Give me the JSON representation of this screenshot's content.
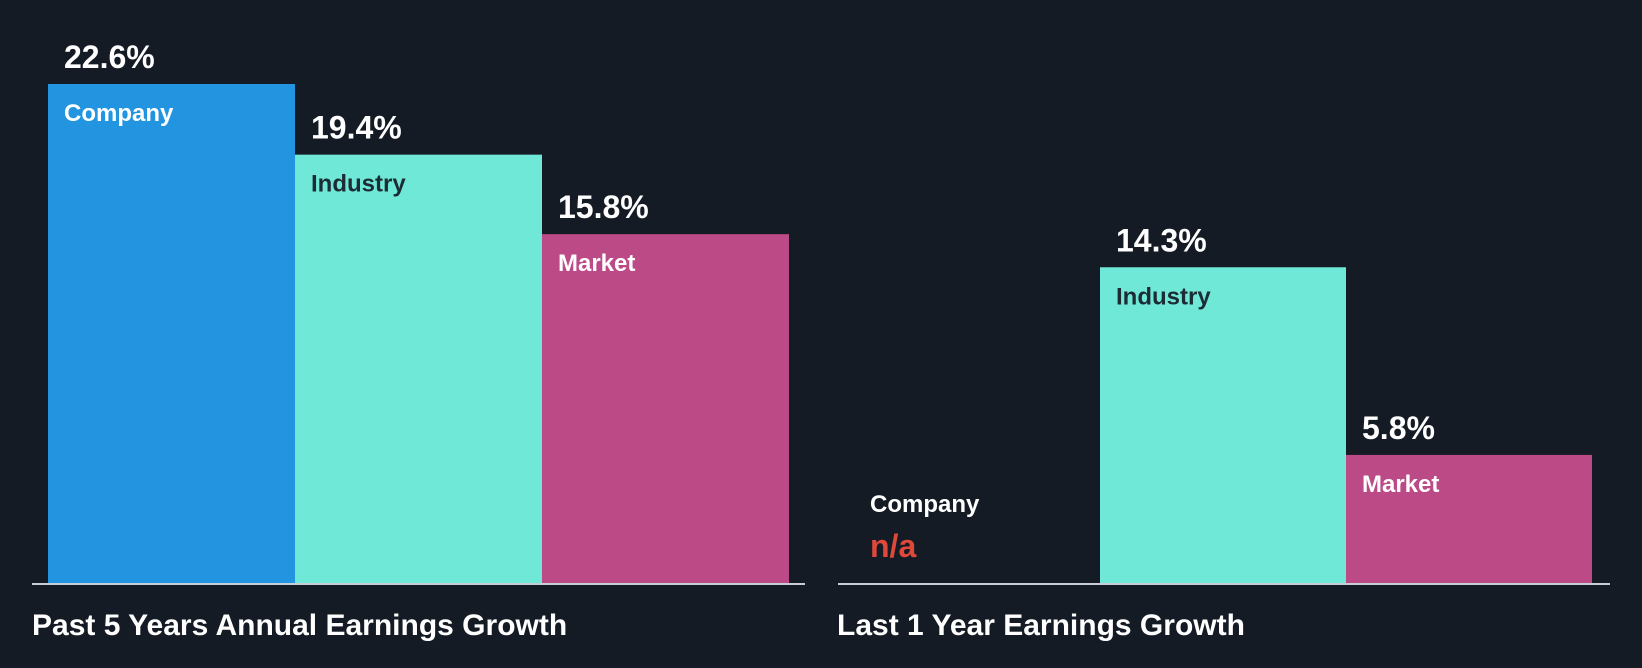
{
  "theme": {
    "background": "#151b24",
    "baseline": "#c9ced6",
    "company_color": "#2394e0",
    "industry_color": "#70e8d7",
    "market_color": "#bb4a86",
    "value_text": "#ffffff",
    "na_color": "#e0483a",
    "label_on_company": "#ffffff",
    "label_on_industry": "#1c2b34",
    "label_on_market": "#ffffff"
  },
  "chart_data": [
    {
      "type": "bar",
      "title": "Past 5 Years Annual Earnings Growth",
      "categories": [
        "Company",
        "Industry",
        "Market"
      ],
      "values": [
        22.6,
        19.4,
        15.8
      ],
      "value_labels": [
        "22.6%",
        "19.4%",
        "15.8%"
      ],
      "unit": "%",
      "ylim": [
        0,
        22.6
      ],
      "grid": false,
      "legend": "none"
    },
    {
      "type": "bar",
      "title": "Last 1 Year Earnings Growth",
      "categories": [
        "Company",
        "Industry",
        "Market"
      ],
      "values": [
        null,
        14.3,
        5.8
      ],
      "value_labels": [
        "n/a",
        "14.3%",
        "5.8%"
      ],
      "unit": "%",
      "ylim": [
        0,
        22.6
      ],
      "grid": false,
      "legend": "none"
    }
  ]
}
